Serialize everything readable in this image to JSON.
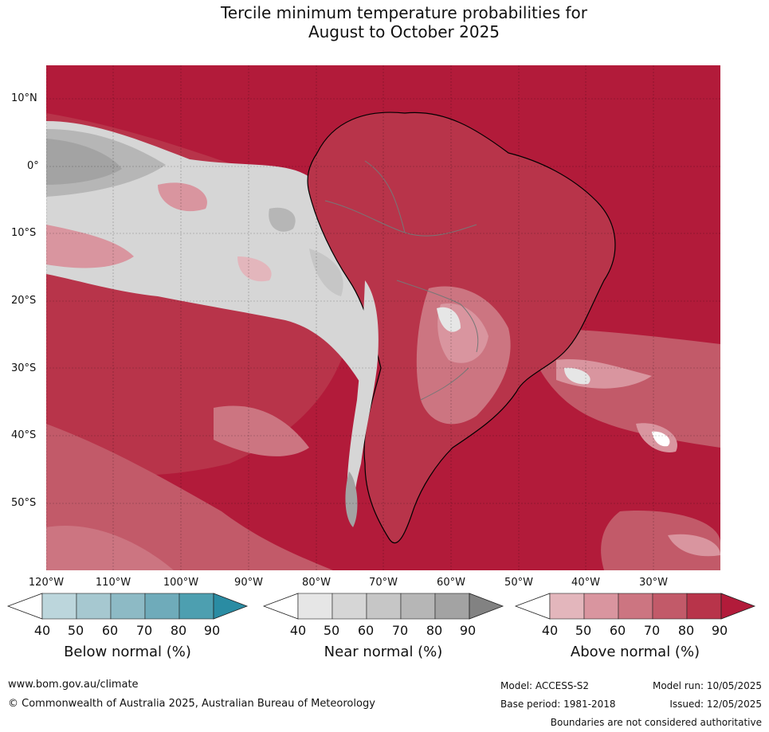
{
  "title_line1": "Tercile minimum temperature probabilities for",
  "title_line2": "August to October 2025",
  "lat_labels": [
    "10°N",
    "0°",
    "10°S",
    "20°S",
    "30°S",
    "40°S",
    "50°S"
  ],
  "lon_labels": [
    "120°W",
    "110°W",
    "100°W",
    "90°W",
    "80°W",
    "70°W",
    "60°W",
    "50°W",
    "40°W",
    "30°W"
  ],
  "legend": {
    "below": {
      "label": "Below normal (%)",
      "ticks": [
        "40",
        "50",
        "60",
        "70",
        "80",
        "90"
      ],
      "colors": [
        "#ffffff",
        "#bcd6dc",
        "#a6c8d0",
        "#8dbac5",
        "#6fabba",
        "#4d9fb0",
        "#2a8ca3"
      ]
    },
    "near": {
      "label": "Near normal (%)",
      "ticks": [
        "40",
        "50",
        "60",
        "70",
        "80",
        "90"
      ],
      "colors": [
        "#ffffff",
        "#e6e6e6",
        "#d6d6d6",
        "#c6c6c6",
        "#b6b6b6",
        "#a3a3a3",
        "#828282"
      ]
    },
    "above": {
      "label": "Above normal (%)",
      "ticks": [
        "40",
        "50",
        "60",
        "70",
        "80",
        "90"
      ],
      "colors": [
        "#ffffff",
        "#e3b6bc",
        "#d9959f",
        "#cc7581",
        "#c25a69",
        "#b8344a",
        "#b21b3a"
      ]
    }
  },
  "footer": {
    "website": "www.bom.gov.au/climate",
    "copyright": "© Commonwealth of Australia 2025, Australian Bureau of Meteorology",
    "model": "Model: ACCESS-S2",
    "model_run": "Model run: 10/05/2025",
    "base_period": "Base period: 1981-2018",
    "issued": "Issued: 12/05/2025",
    "disclaimer": "Boundaries are not considered authoritative"
  }
}
